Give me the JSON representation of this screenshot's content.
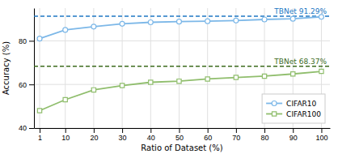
{
  "chart_data": {
    "type": "line",
    "xlabel": "Ratio of Dataset (%)",
    "ylabel": "Accuracy (%)",
    "x": [
      1,
      10,
      20,
      30,
      40,
      50,
      60,
      70,
      80,
      90,
      100
    ],
    "series": [
      {
        "name": "CIFAR10",
        "color": "#7db8e8",
        "marker": "circle",
        "line_style": "solid",
        "values": [
          81.0,
          85.0,
          86.5,
          87.8,
          88.5,
          88.8,
          89.0,
          89.3,
          89.8,
          90.1,
          91.0
        ]
      },
      {
        "name": "CIFAR100",
        "color": "#90be6d",
        "marker": "square",
        "line_style": "solid",
        "values": [
          48.0,
          53.0,
          57.5,
          59.5,
          61.0,
          61.5,
          62.5,
          63.2,
          63.8,
          64.8,
          66.0
        ]
      }
    ],
    "reference_lines": [
      {
        "value": 91.29,
        "label": "TBNet 91.29%",
        "color": "#2178c4",
        "line_style": "dashed"
      },
      {
        "value": 68.37,
        "label": "TBNet 68.37%",
        "color": "#3d6b1e",
        "line_style": "dashed"
      }
    ],
    "xlim": [
      -1,
      103
    ],
    "xticks": [
      1,
      10,
      20,
      30,
      40,
      50,
      60,
      70,
      80,
      90,
      100
    ],
    "ylim": [
      40,
      95
    ],
    "yticks": [
      40,
      60,
      80
    ],
    "grid": true,
    "legend": "lower right"
  }
}
